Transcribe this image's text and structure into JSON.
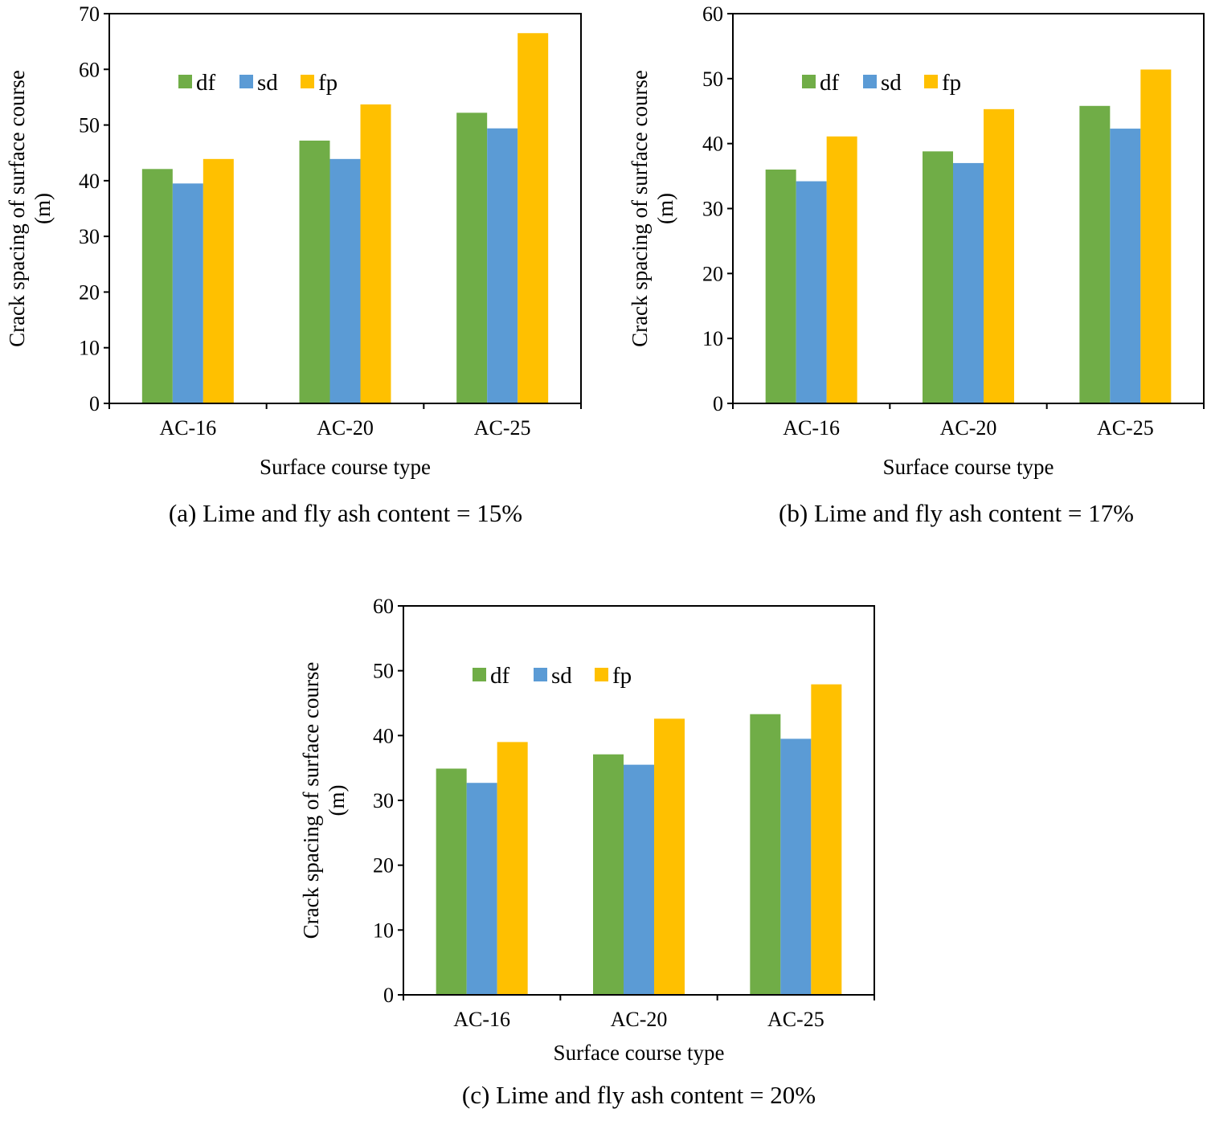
{
  "colors": {
    "df": "#70AD47",
    "sd": "#5B9BD5",
    "fp": "#FFC000",
    "axis": "#000000"
  },
  "chart_data": [
    {
      "type": "bar",
      "caption": "(a) Lime and fly ash content = 15%",
      "xlabel": "Surface course type",
      "ylabel_line1": "Crack spacing of surface course",
      "ylabel_line2": "(m)",
      "ylim": [
        0,
        70
      ],
      "yticks": [
        0,
        10,
        20,
        30,
        40,
        50,
        60,
        70
      ],
      "categories": [
        "AC-16",
        "AC-20",
        "AC-25"
      ],
      "series": [
        {
          "name": "df",
          "values": [
            42.1,
            47.2,
            52.2
          ]
        },
        {
          "name": "sd",
          "values": [
            39.5,
            43.9,
            49.4
          ]
        },
        {
          "name": "fp",
          "values": [
            43.9,
            53.7,
            66.5
          ]
        }
      ]
    },
    {
      "type": "bar",
      "caption": "(b) Lime and fly ash content = 17%",
      "xlabel": "Surface course type",
      "ylabel_line1": "Crack spacing of surface course",
      "ylabel_line2": "(m)",
      "ylim": [
        0,
        60
      ],
      "yticks": [
        0,
        10,
        20,
        30,
        40,
        50,
        60
      ],
      "categories": [
        "AC-16",
        "AC-20",
        "AC-25"
      ],
      "series": [
        {
          "name": "df",
          "values": [
            36.0,
            38.8,
            45.8
          ]
        },
        {
          "name": "sd",
          "values": [
            34.2,
            37.0,
            42.3
          ]
        },
        {
          "name": "fp",
          "values": [
            41.1,
            45.3,
            51.4
          ]
        }
      ]
    },
    {
      "type": "bar",
      "caption": "(c) Lime and fly ash content = 20%",
      "xlabel": "Surface course type",
      "ylabel_line1": "Crack spacing of surface course",
      "ylabel_line2": "(m)",
      "ylim": [
        0,
        60
      ],
      "yticks": [
        0,
        10,
        20,
        30,
        40,
        50,
        60
      ],
      "categories": [
        "AC-16",
        "AC-20",
        "AC-25"
      ],
      "series": [
        {
          "name": "df",
          "values": [
            34.9,
            37.1,
            43.3
          ]
        },
        {
          "name": "sd",
          "values": [
            32.7,
            35.5,
            39.5
          ]
        },
        {
          "name": "fp",
          "values": [
            39.0,
            42.6,
            47.9
          ]
        }
      ]
    }
  ]
}
